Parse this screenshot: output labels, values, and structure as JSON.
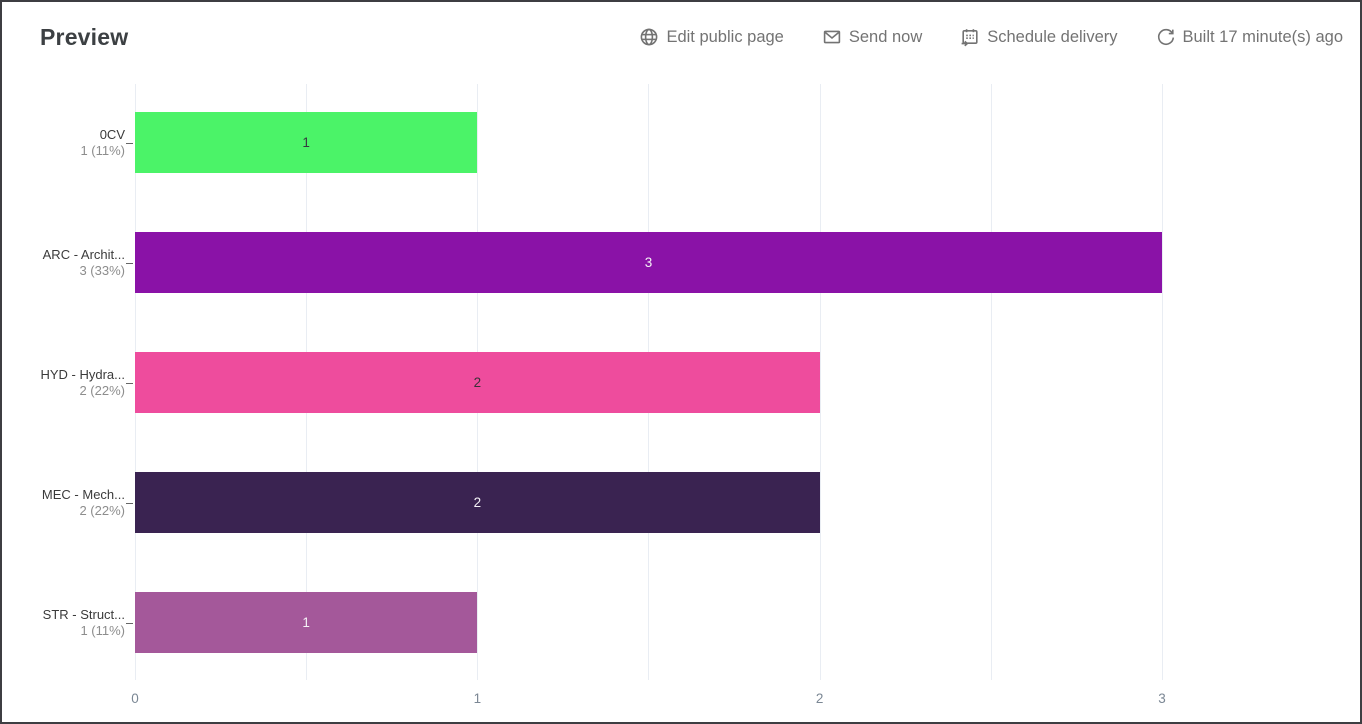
{
  "header": {
    "title": "Preview",
    "actions": [
      {
        "label": "Edit public page",
        "icon": "globe-icon"
      },
      {
        "label": "Send now",
        "icon": "envelope-icon"
      },
      {
        "label": "Schedule delivery",
        "icon": "calendar-schedule-icon"
      },
      {
        "label": "Built 17 minute(s) ago",
        "icon": "refresh-icon"
      }
    ]
  },
  "chart_data": {
    "type": "bar",
    "orientation": "horizontal",
    "categories": [
      "0CV",
      "ARC - Archit...",
      "HYD - Hydra...",
      "MEC - Mech...",
      "STR - Struct..."
    ],
    "category_sublabels": [
      "1 (11%)",
      "3 (33%)",
      "2 (22%)",
      "2 (22%)",
      "1 (11%)"
    ],
    "values": [
      1,
      3,
      2,
      2,
      1
    ],
    "value_labels": [
      "1",
      "3",
      "2",
      "2",
      "1"
    ],
    "bar_colors": [
      "#4bf368",
      "#8a12a7",
      "#ee4c9d",
      "#3a2351",
      "#a4589a"
    ],
    "value_label_colors": [
      "#353a40",
      "#f5f2f7",
      "#3a3138",
      "#f5f2f7",
      "#f5f2f7"
    ],
    "title": "",
    "xlabel": "",
    "ylabel": "",
    "x_ticks": [
      0,
      1,
      2,
      3
    ],
    "x_gridline_step": 0.5,
    "x_max_gridline": 3,
    "xlim": [
      0,
      3.57
    ],
    "grid": true,
    "gridline_color": "#e9edf3",
    "axis_text_color": "#7b8794",
    "legend": "none"
  }
}
